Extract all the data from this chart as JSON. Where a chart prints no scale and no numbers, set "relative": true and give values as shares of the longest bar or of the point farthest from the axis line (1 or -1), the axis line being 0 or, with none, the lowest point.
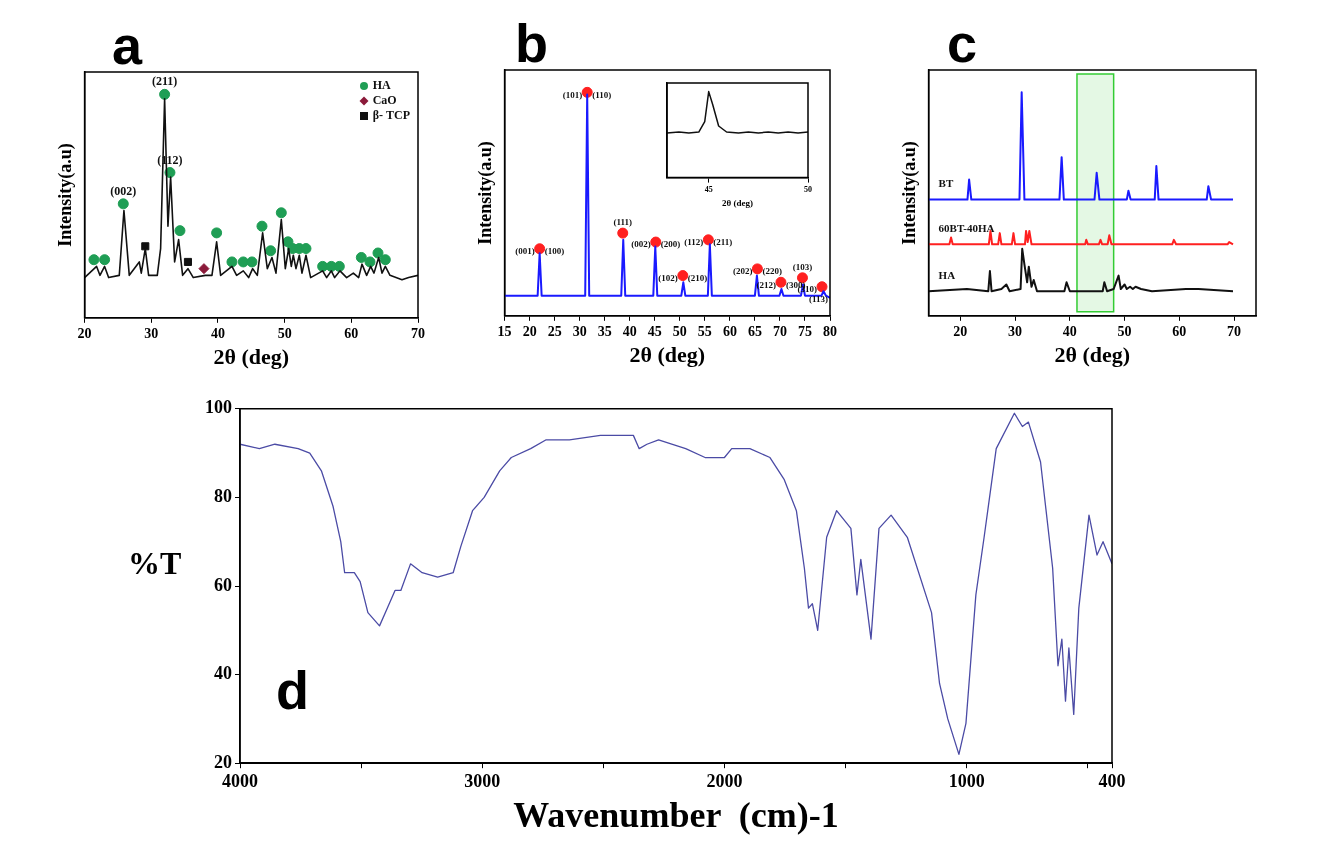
{
  "chart_data": [
    {
      "type": "line",
      "title": "a",
      "xlabel": "2θ (deg)",
      "ylabel": "Intensity(a.u)",
      "relative": true,
      "xlim": [
        20,
        70
      ],
      "xticks": [
        20,
        30,
        40,
        50,
        60,
        70
      ],
      "legend": "top right",
      "annotations": [
        {
          "text": "(002)",
          "x": 25.8,
          "y": 0.51
        },
        {
          "text": "(211)",
          "x": 32.0,
          "y": 1
        },
        {
          "text": "(112)",
          "x": 32.8,
          "y": 0.65
        }
      ],
      "series": [
        {
          "color": "#111111",
          "x": [
            20,
            21.8,
            22.3,
            23.0,
            23.6,
            25.2,
            25.9,
            26.7,
            28.2,
            28.5,
            29.1,
            29.6,
            30.9,
            31.4,
            32.0,
            32.5,
            32.9,
            33.5,
            34.1,
            34.7,
            35.5,
            36.3,
            38.1,
            39.1,
            39.8,
            40.4,
            42.1,
            42.8,
            43.8,
            44.6,
            45.2,
            45.9,
            46.7,
            47.4,
            48.1,
            48.7,
            49.5,
            50.1,
            50.6,
            51.0,
            51.3,
            51.7,
            52.2,
            52.6,
            53.2,
            53.9,
            55.7,
            56.3,
            57.0,
            57.5,
            58.3,
            59.3,
            60.3,
            61.1,
            61.6,
            62.3,
            62.9,
            63.4,
            64.1,
            64.6,
            65.1,
            65.8,
            67.6,
            68.6,
            70
          ],
          "values": [
            0.18,
            0.23,
            0.19,
            0.23,
            0.18,
            0.19,
            0.48,
            0.19,
            0.25,
            0.2,
            0.31,
            0.19,
            0.19,
            0.31,
            0.98,
            0.41,
            0.63,
            0.25,
            0.35,
            0.19,
            0.22,
            0.18,
            0.19,
            0.19,
            0.34,
            0.19,
            0.23,
            0.19,
            0.21,
            0.18,
            0.22,
            0.19,
            0.38,
            0.22,
            0.27,
            0.2,
            0.44,
            0.22,
            0.31,
            0.23,
            0.28,
            0.22,
            0.28,
            0.2,
            0.28,
            0.18,
            0.21,
            0.18,
            0.21,
            0.18,
            0.21,
            0.18,
            0.2,
            0.18,
            0.24,
            0.19,
            0.23,
            0.2,
            0.27,
            0.2,
            0.23,
            0.19,
            0.17,
            0.18,
            0.19
          ]
        },
        {
          "type": "scatter",
          "name": "HA",
          "marker": "circle",
          "color": "#1f9e55",
          "x": [
            21.4,
            23.0,
            25.8,
            32.0,
            32.8,
            34.3,
            39.8,
            42.1,
            43.8,
            45.1,
            46.6,
            47.9,
            49.5,
            50.5,
            51.2,
            52.2,
            53.2,
            55.7,
            57.0,
            58.2,
            61.5,
            62.8,
            64.0,
            65.1
          ],
          "values": [
            0.26,
            0.26,
            0.51,
            1,
            0.65,
            0.39,
            0.38,
            0.25,
            0.25,
            0.25,
            0.41,
            0.3,
            0.47,
            0.34,
            0.31,
            0.31,
            0.31,
            0.23,
            0.23,
            0.23,
            0.27,
            0.25,
            0.29,
            0.26
          ]
        },
        {
          "type": "scatter",
          "name": "CaO",
          "marker": "diamond",
          "color": "#8b1a3a",
          "x": [
            37.9
          ],
          "values": [
            0.22
          ]
        },
        {
          "type": "scatter",
          "name": "β- TCP",
          "marker": "square",
          "color": "#111111",
          "x": [
            29.1,
            35.5
          ],
          "values": [
            0.32,
            0.25
          ]
        }
      ]
    },
    {
      "type": "line",
      "title": "b",
      "xlabel": "2θ (deg)",
      "ylabel": "Intensity(a.u)",
      "relative": true,
      "xlim": [
        15,
        80
      ],
      "xticks": [
        15,
        20,
        25,
        30,
        35,
        40,
        45,
        50,
        55,
        60,
        65,
        70,
        75,
        80
      ],
      "annotations": [
        {
          "text": "(001)",
          "x": 22.0,
          "y": 0.3
        },
        {
          "text": "(100)",
          "x": 22.0,
          "y": 0.3
        },
        {
          "text": "(101)",
          "x": 31.5,
          "y": 1
        },
        {
          "text": "(110)",
          "x": 31.5,
          "y": 1
        },
        {
          "text": "(111)",
          "x": 38.6,
          "y": 0.37
        },
        {
          "text": "(002)",
          "x": 45.2,
          "y": 0.33
        },
        {
          "text": "(200)",
          "x": 45.2,
          "y": 0.33
        },
        {
          "text": "(102)",
          "x": 50.6,
          "y": 0.18
        },
        {
          "text": "(210)",
          "x": 50.6,
          "y": 0.18
        },
        {
          "text": "(112)",
          "x": 55.7,
          "y": 0.34
        },
        {
          "text": "(211)",
          "x": 55.7,
          "y": 0.34
        },
        {
          "text": "(202)",
          "x": 65.5,
          "y": 0.21
        },
        {
          "text": "(220)",
          "x": 65.5,
          "y": 0.21
        },
        {
          "text": "(212)",
          "x": 70.2,
          "y": 0.15
        },
        {
          "text": "(300)",
          "x": 70.2,
          "y": 0.15
        },
        {
          "text": "(103)",
          "x": 74.5,
          "y": 0.17
        },
        {
          "text": "(310)",
          "x": 78.4,
          "y": 0.13
        },
        {
          "text": "(113)",
          "x": 78.4,
          "y": 0.13
        }
      ],
      "series": [
        {
          "color": "#1a1aff",
          "x": [
            15,
            21.6,
            22.0,
            22.4,
            31.1,
            31.5,
            31.9,
            38.3,
            38.7,
            39.1,
            44.7,
            45.1,
            45.5,
            50.3,
            50.7,
            51.1,
            55.6,
            56.0,
            56.4,
            65.0,
            65.4,
            65.8,
            69.9,
            70.3,
            70.7,
            74.2,
            74.6,
            75.0,
            78.3,
            78.7,
            79.2,
            80
          ],
          "values": [
            0.09,
            0.09,
            0.28,
            0.09,
            0.09,
            0.99,
            0.09,
            0.09,
            0.34,
            0.09,
            0.09,
            0.31,
            0.09,
            0.09,
            0.15,
            0.09,
            0.09,
            0.32,
            0.09,
            0.09,
            0.18,
            0.09,
            0.09,
            0.12,
            0.09,
            0.09,
            0.14,
            0.09,
            0.09,
            0.11,
            0.09,
            0.08
          ]
        },
        {
          "type": "scatter",
          "marker": "circle",
          "color": "#ff2020",
          "x": [
            22.0,
            31.5,
            38.6,
            45.2,
            50.6,
            55.7,
            65.5,
            70.2,
            74.5,
            78.4
          ],
          "values": [
            0.3,
            1,
            0.37,
            0.33,
            0.18,
            0.34,
            0.21,
            0.15,
            0.17,
            0.13
          ]
        }
      ]
    },
    {
      "type": "line",
      "xlabel": "2θ (deg)",
      "relative": true,
      "xlim": [
        42.9,
        50
      ],
      "xticks": [
        45,
        50
      ],
      "color": "#111111",
      "x": [
        42.9,
        43.5,
        44.0,
        44.5,
        44.8,
        45.0,
        45.2,
        45.5,
        45.9,
        46.5,
        47.0,
        47.5,
        48.0,
        48.5,
        49.0,
        49.5,
        50
      ],
      "values": [
        0.52,
        0.53,
        0.52,
        0.53,
        0.65,
        1,
        0.85,
        0.6,
        0.53,
        0.52,
        0.53,
        0.52,
        0.53,
        0.52,
        0.53,
        0.52,
        0.53
      ]
    },
    {
      "type": "line",
      "title": "c",
      "xlabel": "2θ (deg)",
      "ylabel": "Intensity(a.u)",
      "relative": true,
      "xlim": [
        14.2,
        74
      ],
      "xticks": [
        20,
        30,
        40,
        50,
        60,
        70
      ],
      "bands": [
        {
          "axis": "x",
          "from": 41.3,
          "to": 48.0,
          "color": "#33cc33"
        }
      ],
      "series": [
        {
          "name": "BT",
          "color": "#1a1aff",
          "x": [
            14.2,
            21.3,
            21.6,
            22.0,
            30.8,
            31.2,
            31.7,
            38.1,
            38.5,
            38.9,
            44.5,
            44.9,
            45.4,
            50.4,
            50.7,
            51.1,
            55.5,
            55.8,
            56.2,
            65.0,
            65.3,
            65.8,
            69.8
          ],
          "values": [
            0.52,
            0.52,
            0.61,
            0.52,
            0.52,
            1,
            0.52,
            0.52,
            0.71,
            0.52,
            0.52,
            0.64,
            0.52,
            0.52,
            0.56,
            0.52,
            0.52,
            0.67,
            0.52,
            0.52,
            0.58,
            0.52,
            0.52
          ]
        },
        {
          "name": "60BT-40HA",
          "color": "#ff2020",
          "x": [
            14.2,
            18.0,
            18.3,
            18.6,
            25.2,
            25.5,
            25.8,
            26.9,
            27.2,
            27.5,
            29.4,
            29.7,
            30.0,
            31.8,
            32.0,
            32.3,
            32.6,
            33.0,
            42.8,
            43.0,
            43.3,
            45.3,
            45.6,
            45.9,
            46.9,
            47.2,
            47.6,
            58.7,
            59.0,
            59.4,
            68.8,
            69.1,
            69.8
          ],
          "values": [
            0.32,
            0.32,
            0.35,
            0.32,
            0.32,
            0.38,
            0.32,
            0.32,
            0.37,
            0.32,
            0.32,
            0.37,
            0.32,
            0.32,
            0.38,
            0.33,
            0.38,
            0.32,
            0.32,
            0.34,
            0.32,
            0.32,
            0.34,
            0.32,
            0.32,
            0.36,
            0.32,
            0.32,
            0.34,
            0.32,
            0.32,
            0.33,
            0.32
          ]
        },
        {
          "name": "HA",
          "color": "#111111",
          "x": [
            14.2,
            21.2,
            25.1,
            25.4,
            25.7,
            27.5,
            28.4,
            29.0,
            31.0,
            31.3,
            31.7,
            32.2,
            32.5,
            33.0,
            33.4,
            34.0,
            39.0,
            39.4,
            40.0,
            46.0,
            46.3,
            46.8,
            48.0,
            48.9,
            49.3,
            50.0,
            50.4,
            51.0,
            51.5,
            52.0,
            53.0,
            55.0,
            61.2,
            63.5,
            69.8
          ],
          "values": [
            0.11,
            0.12,
            0.11,
            0.2,
            0.11,
            0.12,
            0.14,
            0.11,
            0.12,
            0.3,
            0.23,
            0.15,
            0.22,
            0.13,
            0.16,
            0.11,
            0.11,
            0.15,
            0.11,
            0.11,
            0.15,
            0.11,
            0.12,
            0.18,
            0.12,
            0.14,
            0.12,
            0.13,
            0.12,
            0.13,
            0.12,
            0.11,
            0.12,
            0.12,
            0.11
          ]
        }
      ]
    },
    {
      "type": "line",
      "title": "d",
      "xlabel": "Wavenumber  (cm)-1",
      "ylabel": "%T",
      "xlim": [
        4000,
        400
      ],
      "ylim": [
        20,
        100
      ],
      "xticks": [
        4000,
        {
          "value": 3500,
          "label": null
        },
        3000,
        {
          "value": 2500,
          "label": null
        },
        2000,
        {
          "value": 1500,
          "label": null
        },
        1000,
        {
          "value": 500,
          "label": null
        },
        400
      ],
      "yticks": [
        20,
        40,
        60,
        80,
        100
      ],
      "color": "#4b4ba5",
      "x": [
        4000,
        3920,
        3856,
        3760,
        3712,
        3664,
        3616,
        3584,
        3568,
        3528,
        3504,
        3472,
        3424,
        3392,
        3360,
        3336,
        3296,
        3248,
        3184,
        3120,
        3088,
        3040,
        2992,
        2928,
        2880,
        2800,
        2736,
        2640,
        2512,
        2376,
        2352,
        2320,
        2272,
        2160,
        2080,
        2000,
        1970,
        1895,
        1812,
        1753,
        1703,
        1670,
        1653,
        1637,
        1615,
        1578,
        1537,
        1478,
        1453,
        1437,
        1395,
        1362,
        1312,
        1245,
        1145,
        1112,
        1078,
        1032,
        1003,
        962,
        928,
        878,
        803,
        770,
        745,
        695,
        645,
        623,
        607,
        592,
        578,
        558,
        537,
        495,
        462,
        437,
        400
      ],
      "values": [
        92,
        91,
        92,
        91,
        90,
        86,
        78,
        70,
        63,
        63,
        61,
        54,
        51,
        55,
        59,
        59,
        65,
        63,
        62,
        63,
        69,
        77,
        80,
        86,
        89,
        91,
        93,
        93,
        94,
        94,
        91,
        92,
        93,
        91,
        89,
        89,
        91,
        91,
        89,
        84,
        77,
        64,
        55,
        56,
        50,
        71,
        77,
        73,
        58,
        66,
        48,
        73,
        76,
        71,
        54,
        38,
        30,
        22,
        29,
        58,
        71,
        91,
        99,
        96,
        97,
        88,
        64,
        42,
        48,
        34,
        46,
        31,
        55,
        76,
        67,
        70,
        65
      ]
    }
  ]
}
